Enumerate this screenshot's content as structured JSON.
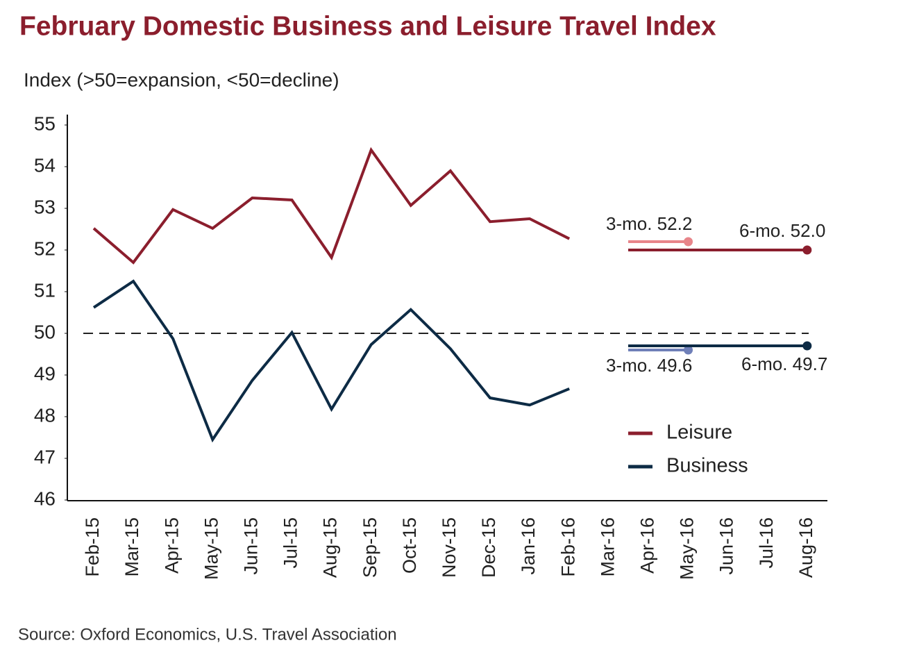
{
  "chart_data": {
    "type": "line",
    "title": "February Domestic Business and Leisure Travel Index",
    "subtitle": "Index (>50=expansion, <50=decline)",
    "source": "Source: Oxford Economics, U.S. Travel Association",
    "categories": [
      "Feb-15",
      "Mar-15",
      "Apr-15",
      "May-15",
      "Jun-15",
      "Jul-15",
      "Aug-15",
      "Sep-15",
      "Oct-15",
      "Nov-15",
      "Dec-15",
      "Jan-16",
      "Feb-16",
      "Mar-16",
      "Apr-16",
      "May-16",
      "Jun-16",
      "Jul-16",
      "Aug-16"
    ],
    "series": [
      {
        "name": "Leisure",
        "color": "#8b1e2d",
        "values": [
          52.52,
          51.7,
          52.97,
          52.52,
          53.25,
          53.2,
          51.82,
          54.4,
          53.07,
          53.9,
          52.68,
          52.75,
          52.27,
          null,
          null,
          null,
          null,
          null,
          null
        ]
      },
      {
        "name": "Business",
        "color": "#0d2b45",
        "values": [
          50.62,
          51.25,
          49.87,
          47.45,
          48.87,
          50.02,
          48.18,
          49.73,
          50.57,
          49.63,
          48.45,
          48.28,
          48.67,
          null,
          null,
          null,
          null,
          null,
          null
        ]
      }
    ],
    "averages": [
      {
        "label": "3-mo. 52.2",
        "value": 52.2,
        "color": "#e8858a"
      },
      {
        "label": "6-mo. 52.0",
        "value": 52.0,
        "color": "#8b1e2d"
      },
      {
        "label": "3-mo. 49.6",
        "value": 49.6,
        "color": "#6f7fb8"
      },
      {
        "label": "6-mo. 49.7",
        "value": 49.7,
        "color": "#0d2b45"
      }
    ],
    "reference_line": 50,
    "ylim": [
      46,
      55
    ],
    "yticks": [
      46,
      47,
      48,
      49,
      50,
      51,
      52,
      53,
      54,
      55
    ],
    "legend": "lower right"
  }
}
